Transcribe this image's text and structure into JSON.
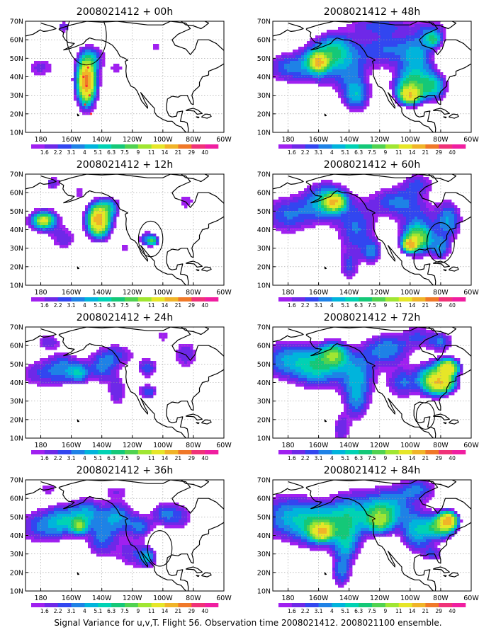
{
  "chart_data": {
    "type": "heatmap",
    "panels": [
      {
        "title": "2008021412 + 00h",
        "blobs": [
          [
            -180,
            45,
            10,
            6,
            2.5
          ],
          [
            -150,
            38,
            7,
            13,
            9
          ],
          [
            -150,
            38,
            4,
            9,
            22
          ],
          [
            -145,
            50,
            8,
            6,
            3
          ],
          [
            -165,
            67,
            4,
            3,
            3
          ],
          [
            -130,
            45,
            6,
            4,
            2
          ],
          [
            -105,
            56,
            5,
            3,
            2
          ]
        ],
        "circle": {
          "lon": -150,
          "lat": 62,
          "r_deg": 13
        },
        "dots": [
          [
            -152,
            40
          ],
          [
            -150,
            35
          ],
          [
            -148,
            30
          ],
          [
            -151,
            25
          ],
          [
            -147,
            20
          ],
          [
            -149,
            45
          ]
        ]
      },
      {
        "title": "2008021412 + 48h",
        "blobs": [
          [
            -180,
            45,
            14,
            8,
            4
          ],
          [
            -160,
            48,
            12,
            10,
            6
          ],
          [
            -150,
            55,
            10,
            8,
            5
          ],
          [
            -160,
            48,
            5,
            4,
            18
          ],
          [
            -140,
            45,
            12,
            15,
            4
          ],
          [
            -135,
            30,
            8,
            8,
            5
          ],
          [
            -115,
            55,
            18,
            10,
            4
          ],
          [
            -95,
            50,
            10,
            12,
            5
          ],
          [
            -100,
            35,
            10,
            8,
            8
          ],
          [
            -100,
            30,
            6,
            4,
            16
          ],
          [
            -85,
            35,
            8,
            7,
            7
          ],
          [
            -120,
            68,
            20,
            5,
            3
          ],
          [
            -85,
            65,
            10,
            6,
            3
          ],
          [
            -85,
            60,
            5,
            4,
            6
          ]
        ],
        "circle": null,
        "dots": []
      },
      {
        "title": "2008021412 + 12h",
        "blobs": [
          [
            -178,
            45,
            10,
            6,
            6
          ],
          [
            -178,
            45,
            5,
            3,
            10
          ],
          [
            -142,
            45,
            8,
            9,
            9
          ],
          [
            -142,
            45,
            5,
            6,
            18
          ],
          [
            -135,
            52,
            6,
            5,
            5
          ],
          [
            -165,
            35,
            8,
            6,
            3
          ],
          [
            -110,
            35,
            6,
            4,
            4
          ],
          [
            -107,
            34,
            3,
            2,
            8
          ],
          [
            -125,
            30,
            5,
            4,
            2
          ],
          [
            -85,
            55,
            8,
            6,
            2
          ],
          [
            -172,
            65,
            5,
            4,
            3
          ],
          [
            -155,
            60,
            5,
            4,
            2
          ]
        ],
        "circle": {
          "lon": -108,
          "lat": 35,
          "r_deg": 8
        },
        "dots": []
      },
      {
        "title": "2008021412 + 60h",
        "blobs": [
          [
            -180,
            48,
            16,
            10,
            4
          ],
          [
            -155,
            55,
            14,
            10,
            6
          ],
          [
            -150,
            55,
            6,
            4,
            18
          ],
          [
            -135,
            40,
            12,
            14,
            4
          ],
          [
            -125,
            28,
            6,
            6,
            4
          ],
          [
            -110,
            55,
            16,
            8,
            4
          ],
          [
            -95,
            40,
            12,
            14,
            4
          ],
          [
            -95,
            35,
            8,
            6,
            9
          ],
          [
            -100,
            32,
            4,
            3,
            20
          ],
          [
            -75,
            45,
            8,
            10,
            5
          ],
          [
            -80,
            30,
            6,
            6,
            4
          ],
          [
            -140,
            20,
            6,
            8,
            3
          ],
          [
            -95,
            65,
            10,
            6,
            3
          ]
        ],
        "circle": {
          "lon": -80,
          "lat": 33,
          "r_deg": 9
        },
        "dots": []
      },
      {
        "title": "2008021412 + 24h",
        "blobs": [
          [
            -180,
            45,
            14,
            8,
            3
          ],
          [
            -165,
            48,
            10,
            8,
            4
          ],
          [
            -155,
            45,
            6,
            5,
            5
          ],
          [
            -140,
            48,
            10,
            8,
            4
          ],
          [
            -130,
            35,
            6,
            8,
            3
          ],
          [
            -130,
            55,
            12,
            6,
            3
          ],
          [
            -110,
            48,
            6,
            5,
            4
          ],
          [
            -110,
            35,
            6,
            4,
            4
          ],
          [
            -85,
            55,
            8,
            8,
            3
          ],
          [
            -175,
            62,
            8,
            4,
            3
          ],
          [
            -100,
            65,
            6,
            4,
            2
          ]
        ],
        "circle": null,
        "dots": []
      },
      {
        "title": "2008021412 + 72h",
        "blobs": [
          [
            -180,
            52,
            18,
            10,
            5
          ],
          [
            -160,
            48,
            14,
            10,
            6
          ],
          [
            -150,
            55,
            8,
            6,
            9
          ],
          [
            -135,
            45,
            12,
            12,
            5
          ],
          [
            -135,
            30,
            8,
            10,
            4
          ],
          [
            -145,
            15,
            6,
            8,
            3
          ],
          [
            -115,
            58,
            14,
            8,
            5
          ],
          [
            -105,
            40,
            10,
            8,
            4
          ],
          [
            -85,
            42,
            10,
            8,
            8
          ],
          [
            -80,
            40,
            8,
            5,
            16
          ],
          [
            -75,
            48,
            6,
            4,
            18
          ],
          [
            -95,
            65,
            10,
            6,
            3
          ],
          [
            -80,
            62,
            8,
            5,
            4
          ]
        ],
        "circle": {
          "lon": -90,
          "lat": 22,
          "r_deg": 6
        },
        "dots": []
      },
      {
        "title": "2008021412 + 36h",
        "blobs": [
          [
            -180,
            45,
            14,
            9,
            4
          ],
          [
            -165,
            48,
            10,
            8,
            5
          ],
          [
            -155,
            45,
            5,
            4,
            8
          ],
          [
            -150,
            52,
            10,
            8,
            5
          ],
          [
            -140,
            38,
            10,
            10,
            4
          ],
          [
            -130,
            50,
            10,
            8,
            5
          ],
          [
            -115,
            45,
            8,
            6,
            4
          ],
          [
            -100,
            52,
            8,
            6,
            3
          ],
          [
            -120,
            30,
            10,
            8,
            3
          ],
          [
            -110,
            28,
            5,
            5,
            5
          ],
          [
            -90,
            50,
            10,
            8,
            3
          ],
          [
            -175,
            65,
            8,
            4,
            2
          ],
          [
            -130,
            64,
            10,
            4,
            2
          ]
        ],
        "circle": {
          "lon": -102,
          "lat": 33,
          "r_deg": 8
        },
        "dots": []
      },
      {
        "title": "2008021412 + 84h",
        "blobs": [
          [
            -180,
            50,
            18,
            12,
            5
          ],
          [
            -160,
            45,
            14,
            10,
            7
          ],
          [
            -158,
            42,
            6,
            4,
            17
          ],
          [
            -140,
            50,
            14,
            12,
            6
          ],
          [
            -142,
            35,
            8,
            10,
            5
          ],
          [
            -145,
            20,
            6,
            8,
            4
          ],
          [
            -115,
            55,
            16,
            10,
            6
          ],
          [
            -120,
            48,
            8,
            6,
            9
          ],
          [
            -95,
            42,
            10,
            10,
            6
          ],
          [
            -80,
            45,
            8,
            6,
            10
          ],
          [
            -75,
            48,
            5,
            4,
            22
          ],
          [
            -95,
            65,
            12,
            6,
            4
          ],
          [
            -85,
            30,
            6,
            4,
            3
          ]
        ],
        "circle": null,
        "dots": []
      }
    ],
    "xticks": [
      "180",
      "160W",
      "140W",
      "120W",
      "100W",
      "80W",
      "60W"
    ],
    "yticks": [
      "10N",
      "20N",
      "30N",
      "40N",
      "50N",
      "60N",
      "70N"
    ],
    "xrange": [
      -190,
      -60
    ],
    "yrange": [
      10,
      70
    ],
    "colorbar": {
      "levels": [
        "1.6",
        "2.2",
        "3.1",
        "4",
        "5.1",
        "6.3",
        "7.5",
        "9",
        "11",
        "14",
        "21",
        "29",
        "40"
      ],
      "thresholds": [
        1.6,
        2.2,
        3.1,
        4,
        5.1,
        6.3,
        7.5,
        9,
        11,
        14,
        21,
        29,
        40
      ],
      "colors": [
        "#a020f0",
        "#6e28e8",
        "#3246f0",
        "#1e82e6",
        "#00b4dc",
        "#00d2b4",
        "#14c878",
        "#50d250",
        "#a0e632",
        "#e6e628",
        "#f0b428",
        "#f07828",
        "#f03278",
        "#f01ea0"
      ]
    },
    "grid": true
  },
  "caption": "Signal Variance for u,v,T. Flight 56. Observation time 2008021412. 2008021100 ensemble."
}
